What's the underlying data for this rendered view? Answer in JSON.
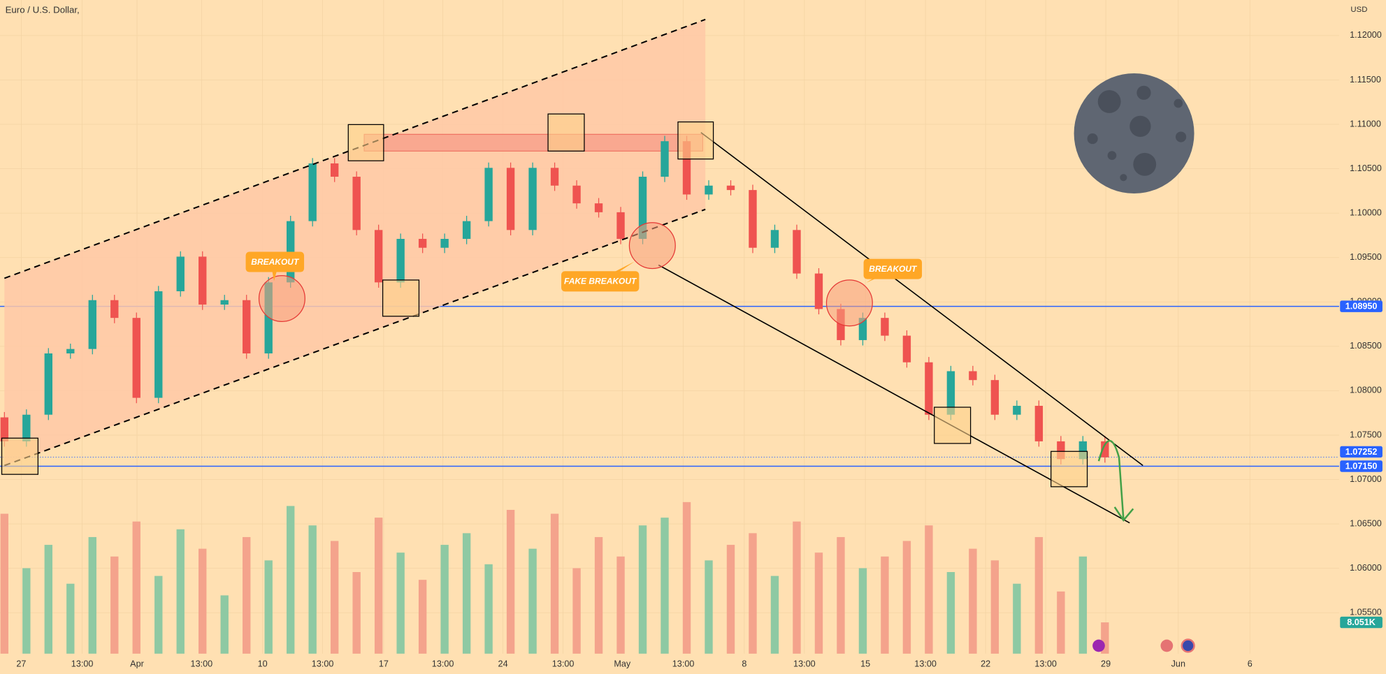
{
  "header": {
    "title": "Euro / U.S. Dollar,",
    "currency": "USD"
  },
  "chart_data": {
    "type": "candlestick",
    "candles": {
      "open": [
        1.077,
        1.0743,
        1.0773,
        1.0842,
        1.0847,
        1.0902,
        1.0882,
        1.0792,
        1.0912,
        1.0951,
        1.0897,
        1.0902,
        1.0842,
        1.0922,
        1.0991,
        1.1056,
        1.1041,
        1.0981,
        1.0922,
        1.0971,
        1.0961,
        1.0971,
        1.0991,
        1.1051,
        1.0981,
        1.1051,
        1.1031,
        1.1011,
        1.1001,
        1.0971,
        1.1041,
        1.1081,
        1.1021,
        1.1031,
        1.1026,
        1.0961,
        1.0981,
        1.0932,
        1.0892,
        1.0857,
        1.0882,
        1.0862,
        1.0832,
        1.0773,
        1.0822,
        1.0812,
        1.0773,
        1.0783,
        1.0743,
        1.0723,
        1.0743
      ],
      "high": [
        1.0776,
        1.0779,
        1.0848,
        1.0853,
        1.0908,
        1.0908,
        1.0888,
        1.0918,
        1.0957,
        1.0957,
        1.0908,
        1.0908,
        1.0928,
        1.0997,
        1.1062,
        1.1062,
        1.1047,
        1.0987,
        1.0977,
        1.0977,
        1.0977,
        1.0997,
        1.1057,
        1.1057,
        1.1057,
        1.1057,
        1.1037,
        1.1017,
        1.1007,
        1.1047,
        1.1087,
        1.1087,
        1.1037,
        1.1037,
        1.1032,
        1.0987,
        1.0987,
        1.0938,
        1.0898,
        1.0888,
        1.0888,
        1.0868,
        1.0838,
        1.0828,
        1.0828,
        1.0818,
        1.0789,
        1.0789,
        1.0749,
        1.0749,
        1.0749
      ],
      "low": [
        1.0737,
        1.0737,
        1.0767,
        1.0836,
        1.0841,
        1.0876,
        1.0786,
        1.0786,
        1.0906,
        1.0891,
        1.0891,
        1.0836,
        1.0836,
        1.0916,
        1.0985,
        1.1035,
        1.0975,
        1.0916,
        1.0916,
        1.0955,
        1.0955,
        1.0965,
        1.0985,
        1.0975,
        1.0975,
        1.1025,
        1.1005,
        1.0995,
        1.0965,
        1.0965,
        1.1035,
        1.1015,
        1.1015,
        1.102,
        1.0955,
        1.0955,
        1.0926,
        1.0886,
        1.0851,
        1.0851,
        1.0856,
        1.0826,
        1.0767,
        1.0767,
        1.0806,
        1.0767,
        1.0767,
        1.0737,
        1.0717,
        1.0717,
        1.0719
      ],
      "close": [
        1.0743,
        1.0773,
        1.0842,
        1.0847,
        1.0902,
        1.0882,
        1.0792,
        1.0912,
        1.0951,
        1.0897,
        1.0902,
        1.0842,
        1.0922,
        1.0991,
        1.1056,
        1.1041,
        1.0981,
        1.0922,
        1.0971,
        1.0961,
        1.0971,
        1.0991,
        1.1051,
        1.0981,
        1.1051,
        1.1031,
        1.1011,
        1.1001,
        1.0971,
        1.1041,
        1.1081,
        1.1021,
        1.1031,
        1.1026,
        1.0961,
        1.0981,
        1.0932,
        1.0892,
        1.0857,
        1.0882,
        1.0862,
        1.0832,
        1.0773,
        1.0822,
        1.0812,
        1.0773,
        1.0783,
        1.0743,
        1.0723,
        1.0743,
        1.0725
      ]
    },
    "volume": [
      36000,
      22000,
      28000,
      18000,
      30000,
      25000,
      34000,
      20000,
      32000,
      27000,
      15000,
      30000,
      24000,
      38000,
      33000,
      29000,
      21000,
      35000,
      26000,
      19000,
      28000,
      31000,
      23000,
      37000,
      27000,
      36000,
      22000,
      30000,
      25000,
      33000,
      35000,
      39000,
      24000,
      28000,
      31000,
      20000,
      34000,
      26000,
      30000,
      22000,
      25000,
      29000,
      33000,
      21000,
      27000,
      24000,
      18000,
      30000,
      16000,
      25000,
      8051
    ],
    "volume_ylim": [
      0,
      50000
    ],
    "volume_label": {
      "value": 8051,
      "label": "8.051K"
    },
    "colors": {
      "up": "#26a69a",
      "down": "#ef5350",
      "volume_up": "#8ec9a3",
      "volume_down": "#f4a38c"
    },
    "ylim": [
      1.0481,
      1.124
    ],
    "yticks": [
      {
        "value": 1.055,
        "label": "1.05500"
      },
      {
        "value": 1.06,
        "label": "1.06000"
      },
      {
        "value": 1.065,
        "label": "1.06500"
      },
      {
        "value": 1.07,
        "label": "1.07000"
      },
      {
        "value": 1.075,
        "label": "1.07500"
      },
      {
        "value": 1.08,
        "label": "1.08000"
      },
      {
        "value": 1.085,
        "label": "1.08500"
      },
      {
        "value": 1.09,
        "label": "1.09000"
      },
      {
        "value": 1.095,
        "label": "1.09500"
      },
      {
        "value": 1.1,
        "label": "1.10000"
      },
      {
        "value": 1.105,
        "label": "1.10500"
      },
      {
        "value": 1.11,
        "label": "1.11000"
      },
      {
        "value": 1.115,
        "label": "1.11500"
      },
      {
        "value": 1.12,
        "label": "1.12000"
      }
    ],
    "x_labels": [
      "27",
      "13:00",
      "Apr",
      "13:00",
      "10",
      "13:00",
      "17",
      "13:00",
      "24",
      "13:00",
      "May",
      "13:00",
      "8",
      "13:00",
      "15",
      "13:00",
      "22",
      "13:00",
      "29",
      "Jun",
      "6"
    ],
    "price_lines": [
      {
        "value": 1.0895,
        "label": "1.08950",
        "color": "#2962ff"
      },
      {
        "value": 1.0715,
        "label": "1.07150",
        "color": "#2962ff"
      }
    ],
    "last_price": {
      "value": 1.07252,
      "label": "1.07252",
      "color": "#2962ff"
    },
    "annotations": [
      "BREAKOUT",
      "FAKE BREAKOUT",
      "BREAKOUT"
    ]
  }
}
